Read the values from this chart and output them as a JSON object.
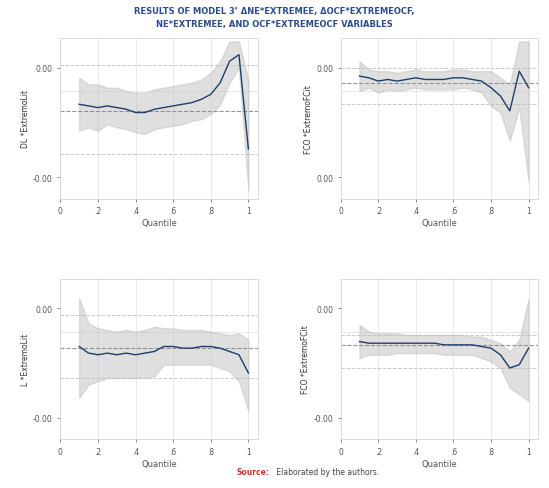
{
  "title_line1": "RESULTS OF MODEL 3’ ΔNE*EXTREMEE, ΔOCF*EXTREMEOCF,",
  "title_line2": "NE*EXTREMEE, AND OCF*EXTREMEOCF VARIABLES",
  "title_color": "#2B4C8C",
  "panels": [
    {
      "ylabel": "DL *ExtremoLit",
      "xlabel": "Quantile",
      "xticks": [
        0,
        0.2,
        0.4,
        0.6,
        0.8,
        1.0
      ],
      "xticklabels": [
        "0",
        ".2",
        ".4",
        ".6",
        ".8",
        "1"
      ],
      "ylim": [
        -0.065,
        0.032
      ],
      "xlim": [
        0.05,
        1.05
      ],
      "ytop_label": "0.00",
      "ybottom_label": "-0.00",
      "ytop": 0.014,
      "ybottom": -0.052,
      "dashed_lines": [
        -0.012,
        0.016,
        -0.038
      ],
      "coef_x": [
        0.1,
        0.15,
        0.2,
        0.25,
        0.3,
        0.35,
        0.4,
        0.45,
        0.5,
        0.55,
        0.6,
        0.65,
        0.7,
        0.75,
        0.8,
        0.85,
        0.9,
        0.95,
        1.0
      ],
      "coef_y": [
        -0.008,
        -0.009,
        -0.01,
        -0.009,
        -0.01,
        -0.011,
        -0.013,
        -0.013,
        -0.011,
        -0.01,
        -0.009,
        -0.008,
        -0.007,
        -0.005,
        -0.002,
        0.005,
        0.018,
        0.022,
        -0.035
      ],
      "ci_upper": [
        0.008,
        0.004,
        0.004,
        0.002,
        0.002,
        0.0,
        -0.001,
        -0.001,
        0.001,
        0.002,
        0.003,
        0.004,
        0.005,
        0.007,
        0.011,
        0.018,
        0.03,
        0.03,
        0.006
      ],
      "ci_lower": [
        -0.024,
        -0.022,
        -0.024,
        -0.02,
        -0.022,
        -0.023,
        -0.025,
        -0.026,
        -0.023,
        -0.022,
        -0.021,
        -0.02,
        -0.018,
        -0.017,
        -0.014,
        -0.008,
        0.005,
        0.014,
        -0.06
      ]
    },
    {
      "ylabel": "FCO *ExtremoFCit",
      "xlabel": "Quantile",
      "xticks": [
        0,
        0.2,
        0.4,
        0.6,
        0.8,
        1.0
      ],
      "xticklabels": [
        "0",
        ".2",
        ".4",
        ".6",
        ".8",
        "1"
      ],
      "ylim": [
        -0.065,
        0.032
      ],
      "xlim": [
        0.05,
        1.05
      ],
      "ytop_label": "0.00",
      "ybottom_label": "0.00",
      "ytop": 0.014,
      "ybottom": -0.052,
      "dashed_lines": [
        0.005,
        0.014,
        -0.008
      ],
      "coef_x": [
        0.1,
        0.15,
        0.2,
        0.25,
        0.3,
        0.35,
        0.4,
        0.45,
        0.5,
        0.55,
        0.6,
        0.65,
        0.7,
        0.75,
        0.8,
        0.85,
        0.9,
        0.95,
        1.0
      ],
      "coef_y": [
        0.009,
        0.008,
        0.006,
        0.007,
        0.006,
        0.007,
        0.008,
        0.007,
        0.007,
        0.007,
        0.008,
        0.008,
        0.007,
        0.006,
        0.002,
        -0.003,
        -0.012,
        0.012,
        0.002
      ],
      "ci_upper": [
        0.018,
        0.013,
        0.012,
        0.012,
        0.011,
        0.012,
        0.013,
        0.012,
        0.012,
        0.012,
        0.013,
        0.013,
        0.012,
        0.012,
        0.012,
        0.008,
        0.004,
        0.03,
        0.03
      ],
      "ci_lower": [
        0.0,
        0.002,
        -0.001,
        0.001,
        0.0,
        0.001,
        0.002,
        0.001,
        0.001,
        0.001,
        0.001,
        0.002,
        0.001,
        -0.001,
        -0.009,
        -0.013,
        -0.03,
        -0.01,
        -0.055
      ]
    },
    {
      "ylabel": "L *ExtremoLit",
      "xlabel": "Quantile",
      "xticks": [
        0,
        0.2,
        0.4,
        0.6,
        0.8,
        1.0
      ],
      "xticklabels": [
        "0",
        ".2",
        ".4",
        ".6",
        ".8",
        "1"
      ],
      "ylim": [
        -0.065,
        0.032
      ],
      "xlim": [
        0.05,
        1.05
      ],
      "ytop_label": "0.00",
      "ybottom_label": "-0.00",
      "ytop": 0.014,
      "ybottom": -0.052,
      "dashed_lines": [
        -0.01,
        0.01,
        -0.028
      ],
      "coef_x": [
        0.1,
        0.15,
        0.2,
        0.25,
        0.3,
        0.35,
        0.4,
        0.45,
        0.5,
        0.55,
        0.6,
        0.65,
        0.7,
        0.75,
        0.8,
        0.85,
        0.9,
        0.95,
        1.0
      ],
      "coef_y": [
        -0.009,
        -0.013,
        -0.014,
        -0.013,
        -0.014,
        -0.013,
        -0.014,
        -0.013,
        -0.012,
        -0.009,
        -0.009,
        -0.01,
        -0.01,
        -0.009,
        -0.009,
        -0.01,
        -0.012,
        -0.014,
        -0.025
      ],
      "ci_upper": [
        0.02,
        0.005,
        0.002,
        0.001,
        0.0,
        0.001,
        0.0,
        0.001,
        0.003,
        0.002,
        0.002,
        0.001,
        0.001,
        0.001,
        0.0,
        -0.001,
        -0.002,
        -0.001,
        -0.005
      ],
      "ci_lower": [
        -0.04,
        -0.032,
        -0.03,
        -0.028,
        -0.028,
        -0.028,
        -0.028,
        -0.028,
        -0.027,
        -0.02,
        -0.02,
        -0.02,
        -0.02,
        -0.02,
        -0.02,
        -0.022,
        -0.024,
        -0.03,
        -0.048
      ]
    },
    {
      "ylabel": "FCO *ExtremoFCit",
      "xlabel": "Quantile",
      "xticks": [
        0,
        0.2,
        0.4,
        0.6,
        0.8,
        1.0
      ],
      "xticklabels": [
        "0",
        ".2",
        ".4",
        ".6",
        ".8",
        "1"
      ],
      "ylim": [
        -0.065,
        0.032
      ],
      "xlim": [
        0.05,
        1.05
      ],
      "ytop_label": "0.00",
      "ybottom_label": "-0.00",
      "ytop": 0.014,
      "ybottom": -0.052,
      "dashed_lines": [
        -0.008,
        -0.002,
        -0.022
      ],
      "coef_x": [
        0.1,
        0.15,
        0.2,
        0.25,
        0.3,
        0.35,
        0.4,
        0.45,
        0.5,
        0.55,
        0.6,
        0.65,
        0.7,
        0.75,
        0.8,
        0.85,
        0.9,
        0.95,
        1.0
      ],
      "coef_y": [
        -0.006,
        -0.007,
        -0.007,
        -0.007,
        -0.007,
        -0.007,
        -0.007,
        -0.007,
        -0.007,
        -0.008,
        -0.008,
        -0.008,
        -0.008,
        -0.009,
        -0.01,
        -0.014,
        -0.022,
        -0.02,
        -0.01
      ],
      "ci_upper": [
        0.004,
        0.0,
        -0.001,
        -0.001,
        -0.001,
        -0.002,
        -0.002,
        -0.002,
        -0.002,
        -0.002,
        -0.002,
        -0.002,
        -0.003,
        -0.003,
        -0.005,
        -0.007,
        -0.012,
        -0.005,
        0.02
      ],
      "ci_lower": [
        -0.016,
        -0.014,
        -0.014,
        -0.014,
        -0.013,
        -0.013,
        -0.013,
        -0.013,
        -0.013,
        -0.014,
        -0.014,
        -0.014,
        -0.014,
        -0.016,
        -0.018,
        -0.022,
        -0.034,
        -0.038,
        -0.042
      ]
    }
  ],
  "line_color": "#1F3D6B",
  "ci_color": "#C0C0C0",
  "ci_alpha": 0.5,
  "dashed_color_dark": "#888888",
  "dashed_color_light": "#BBBBBB",
  "bg_color": "#FFFFFF",
  "grid_color": "#E0E0E0"
}
